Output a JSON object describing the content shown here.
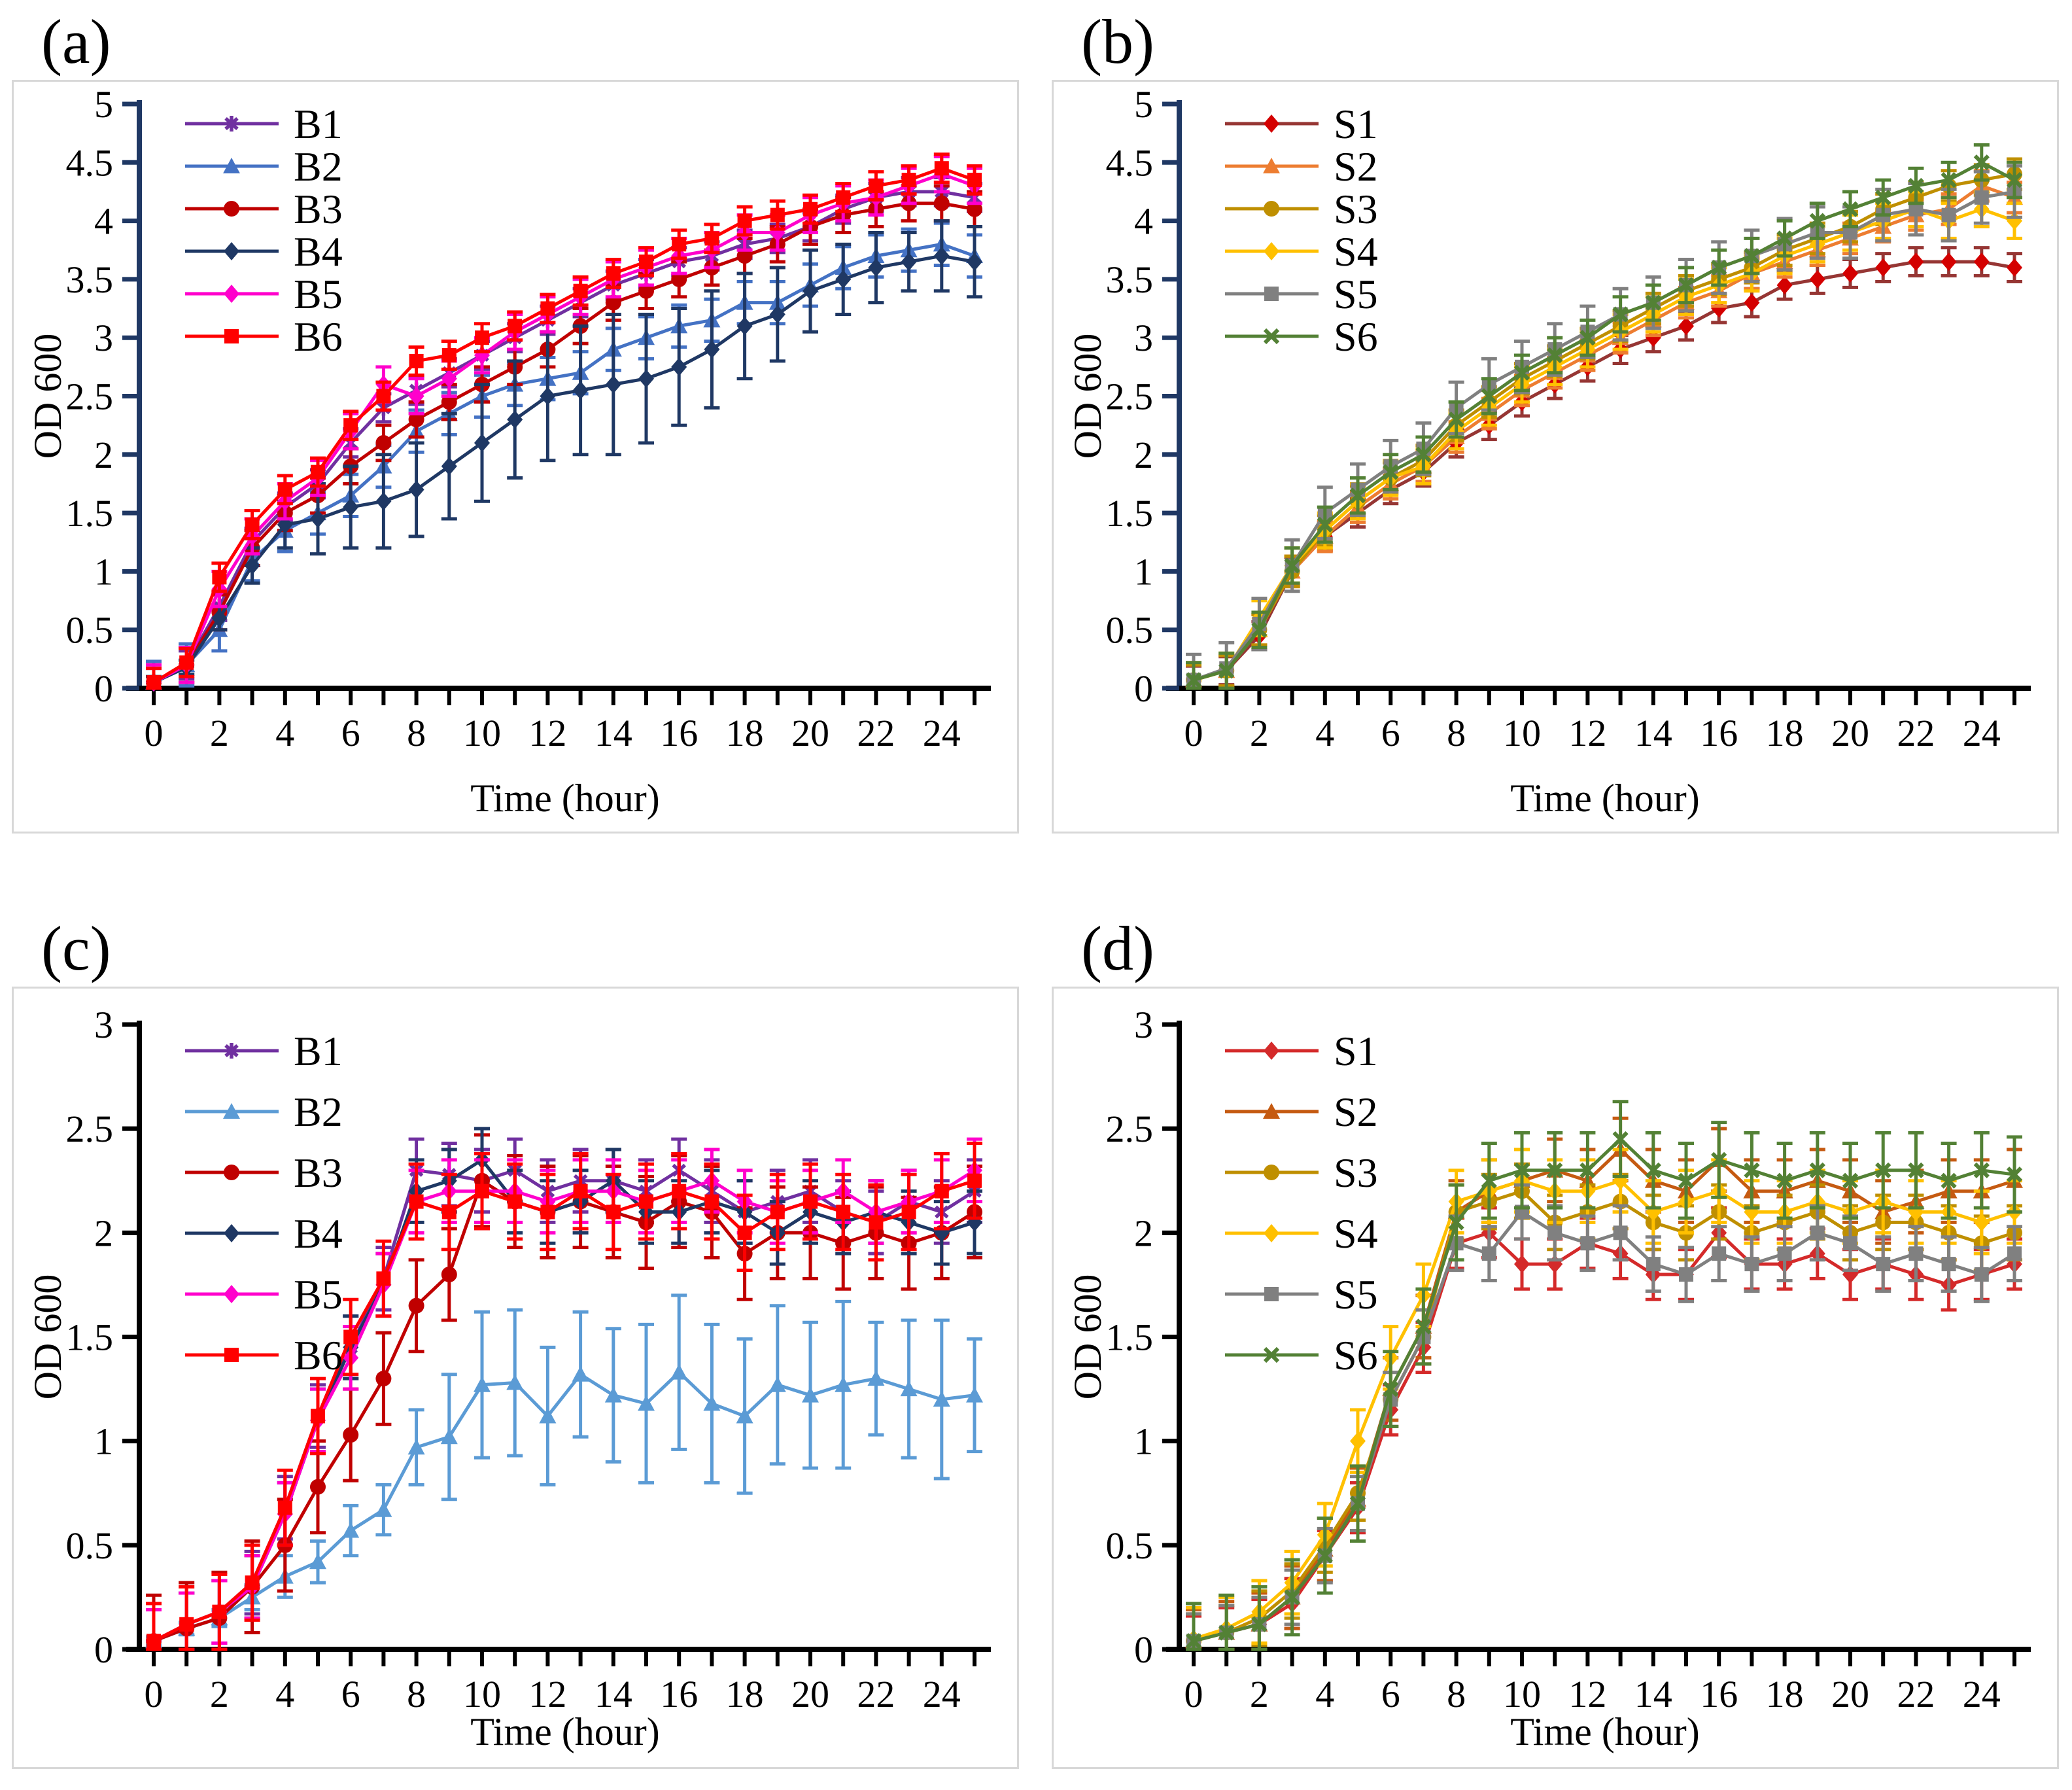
{
  "figure": {
    "x_axis_label": "Time (hour)",
    "y_axis_label": "OD 600",
    "hours": [
      0,
      1,
      2,
      3,
      4,
      5,
      6,
      7,
      8,
      9,
      10,
      11,
      12,
      13,
      14,
      15,
      16,
      17,
      18,
      19,
      20,
      21,
      22,
      23,
      24,
      25
    ]
  },
  "chart_data": [
    {
      "type": "line",
      "panel_label": "(a)",
      "xlabel": "Time (hour)",
      "ylabel": "OD 600",
      "xlim": [
        0,
        25
      ],
      "xtick_label_step": 2,
      "ylim": [
        0,
        5
      ],
      "ytick_step": 0.5,
      "axis_color": "#1F3864",
      "grid": false,
      "legend_position": "top-left",
      "x": [
        0,
        1,
        2,
        3,
        4,
        5,
        6,
        7,
        8,
        9,
        10,
        11,
        12,
        13,
        14,
        15,
        16,
        17,
        18,
        19,
        20,
        21,
        22,
        23,
        24,
        25
      ],
      "series": [
        {
          "name": "B1",
          "color": "#7030A0",
          "marker": "star",
          "err": 0.12,
          "values": [
            0.05,
            0.2,
            0.7,
            1.25,
            1.55,
            1.75,
            2.1,
            2.4,
            2.55,
            2.7,
            2.85,
            3.0,
            3.15,
            3.3,
            3.45,
            3.55,
            3.65,
            3.7,
            3.8,
            3.85,
            3.95,
            4.1,
            4.2,
            4.25,
            4.25,
            4.2
          ]
        },
        {
          "name": "B2",
          "color": "#4472C4",
          "marker": "triangle",
          "err": 0.18,
          "values": [
            0.05,
            0.2,
            0.5,
            1.1,
            1.35,
            1.5,
            1.65,
            1.9,
            2.2,
            2.35,
            2.5,
            2.6,
            2.65,
            2.7,
            2.9,
            3.0,
            3.1,
            3.15,
            3.3,
            3.3,
            3.45,
            3.6,
            3.7,
            3.75,
            3.8,
            3.7
          ]
        },
        {
          "name": "B3",
          "color": "#C00000",
          "marker": "circle",
          "err": 0.15,
          "values": [
            0.05,
            0.2,
            0.65,
            1.2,
            1.5,
            1.65,
            1.9,
            2.1,
            2.3,
            2.45,
            2.6,
            2.75,
            2.9,
            3.1,
            3.3,
            3.4,
            3.5,
            3.6,
            3.7,
            3.8,
            3.95,
            4.05,
            4.1,
            4.15,
            4.15,
            4.1
          ]
        },
        {
          "name": "B4",
          "color": "#1F3864",
          "marker": "diamond",
          "err": [
            0.05,
            0.06,
            0.1,
            0.15,
            0.2,
            0.3,
            0.35,
            0.4,
            0.4,
            0.45,
            0.5,
            0.5,
            0.55,
            0.55,
            0.6,
            0.55,
            0.5,
            0.5,
            0.45,
            0.4,
            0.35,
            0.3,
            0.3,
            0.25,
            0.3,
            0.3
          ],
          "values": [
            0.05,
            0.18,
            0.6,
            1.05,
            1.4,
            1.45,
            1.55,
            1.6,
            1.7,
            1.9,
            2.1,
            2.3,
            2.5,
            2.55,
            2.6,
            2.65,
            2.75,
            2.9,
            3.1,
            3.2,
            3.4,
            3.5,
            3.6,
            3.65,
            3.7,
            3.65
          ]
        },
        {
          "name": "B5",
          "color": "#FF00CC",
          "marker": "diamond",
          "err": 0.15,
          "values": [
            0.05,
            0.2,
            0.85,
            1.3,
            1.6,
            1.8,
            2.2,
            2.6,
            2.5,
            2.65,
            2.85,
            3.05,
            3.2,
            3.35,
            3.5,
            3.6,
            3.7,
            3.75,
            3.9,
            3.9,
            4.05,
            4.15,
            4.2,
            4.3,
            4.4,
            4.3
          ]
        },
        {
          "name": "B6",
          "color": "#FF0000",
          "marker": "square",
          "err": 0.12,
          "values": [
            0.05,
            0.22,
            0.95,
            1.4,
            1.7,
            1.85,
            2.25,
            2.5,
            2.8,
            2.85,
            3.0,
            3.1,
            3.25,
            3.4,
            3.55,
            3.65,
            3.8,
            3.85,
            4.0,
            4.05,
            4.1,
            4.2,
            4.3,
            4.35,
            4.45,
            4.35
          ]
        }
      ]
    },
    {
      "type": "line",
      "panel_label": "(b)",
      "xlabel": "Time (hour)",
      "ylabel": "OD 600",
      "xlim": [
        0,
        25
      ],
      "xtick_label_step": 2,
      "ylim": [
        0,
        5
      ],
      "ytick_step": 0.5,
      "axis_color": "#1F3864",
      "grid": false,
      "legend_position": "top-left",
      "x": [
        0,
        1,
        2,
        3,
        4,
        5,
        6,
        7,
        8,
        9,
        10,
        11,
        12,
        13,
        14,
        15,
        16,
        17,
        18,
        19,
        20,
        21,
        22,
        23,
        24,
        25
      ],
      "series": [
        {
          "name": "S1",
          "color": "#963634",
          "marker": "diamond",
          "marker_color": "#D40000",
          "err": 0.12,
          "values": [
            0.07,
            0.15,
            0.45,
            1.0,
            1.3,
            1.5,
            1.7,
            1.85,
            2.1,
            2.25,
            2.45,
            2.6,
            2.75,
            2.9,
            3.0,
            3.1,
            3.25,
            3.3,
            3.45,
            3.5,
            3.55,
            3.6,
            3.65,
            3.65,
            3.65,
            3.6
          ]
        },
        {
          "name": "S2",
          "color": "#ED7D31",
          "marker": "triangle",
          "err": 0.13,
          "values": [
            0.07,
            0.15,
            0.5,
            1.0,
            1.3,
            1.55,
            1.75,
            1.9,
            2.15,
            2.35,
            2.55,
            2.7,
            2.85,
            3.0,
            3.15,
            3.3,
            3.4,
            3.55,
            3.65,
            3.75,
            3.85,
            3.95,
            4.05,
            4.1,
            4.3,
            4.2
          ]
        },
        {
          "name": "S3",
          "color": "#BF8F00",
          "marker": "circle",
          "err": 0.13,
          "values": [
            0.07,
            0.15,
            0.5,
            1.0,
            1.35,
            1.6,
            1.8,
            1.95,
            2.25,
            2.45,
            2.65,
            2.8,
            2.95,
            3.1,
            3.25,
            3.4,
            3.5,
            3.6,
            3.75,
            3.85,
            3.95,
            4.1,
            4.2,
            4.3,
            4.35,
            4.4
          ]
        },
        {
          "name": "S4",
          "color": "#FFC000",
          "marker": "diamond",
          "err": 0.15,
          "values": [
            0.07,
            0.15,
            0.6,
            1.05,
            1.35,
            1.6,
            1.8,
            1.9,
            2.2,
            2.4,
            2.6,
            2.75,
            2.9,
            3.05,
            3.2,
            3.35,
            3.45,
            3.55,
            3.7,
            3.8,
            3.9,
            4.0,
            4.1,
            4.0,
            4.1,
            4.0
          ]
        },
        {
          "name": "S5",
          "color": "#808080",
          "marker": "square",
          "err": 0.22,
          "values": [
            0.07,
            0.17,
            0.55,
            1.05,
            1.5,
            1.7,
            1.9,
            2.05,
            2.4,
            2.6,
            2.75,
            2.9,
            3.05,
            3.2,
            3.3,
            3.45,
            3.6,
            3.7,
            3.8,
            3.9,
            3.9,
            4.05,
            4.1,
            4.05,
            4.2,
            4.25
          ]
        },
        {
          "name": "S6",
          "color": "#538135",
          "marker": "x",
          "err": 0.15,
          "values": [
            0.07,
            0.15,
            0.5,
            1.05,
            1.4,
            1.65,
            1.85,
            2.0,
            2.3,
            2.5,
            2.7,
            2.85,
            3.0,
            3.2,
            3.3,
            3.45,
            3.6,
            3.7,
            3.85,
            4.0,
            4.1,
            4.2,
            4.3,
            4.35,
            4.5,
            4.35
          ]
        }
      ]
    },
    {
      "type": "line",
      "panel_label": "(c)",
      "xlabel": "Time (hour)",
      "ylabel": "OD 600",
      "xlim": [
        0,
        25
      ],
      "xtick_label_step": 2,
      "ylim": [
        0,
        3
      ],
      "ytick_step": 0.5,
      "axis_color": "#000000",
      "grid": false,
      "legend_position": "top-left",
      "x": [
        0,
        1,
        2,
        3,
        4,
        5,
        6,
        7,
        8,
        9,
        10,
        11,
        12,
        13,
        14,
        15,
        16,
        17,
        18,
        19,
        20,
        21,
        22,
        23,
        24,
        25
      ],
      "series": [
        {
          "name": "B1",
          "color": "#7030A0",
          "marker": "star",
          "err": 0.15,
          "values": [
            0.04,
            0.12,
            0.18,
            0.32,
            0.68,
            1.12,
            1.45,
            1.78,
            2.3,
            2.28,
            2.25,
            2.3,
            2.2,
            2.25,
            2.25,
            2.2,
            2.3,
            2.2,
            2.1,
            2.15,
            2.2,
            2.1,
            2.05,
            2.15,
            2.1,
            2.2
          ]
        },
        {
          "name": "B2",
          "color": "#5B9BD5",
          "marker": "triangle",
          "err": [
            0.02,
            0.03,
            0.04,
            0.06,
            0.1,
            0.1,
            0.12,
            0.12,
            0.18,
            0.3,
            0.35,
            0.35,
            0.33,
            0.3,
            0.32,
            0.38,
            0.37,
            0.38,
            0.37,
            0.38,
            0.35,
            0.4,
            0.27,
            0.33,
            0.38,
            0.27
          ],
          "values": [
            0.04,
            0.1,
            0.15,
            0.25,
            0.35,
            0.42,
            0.57,
            0.67,
            0.97,
            1.02,
            1.27,
            1.28,
            1.12,
            1.32,
            1.22,
            1.18,
            1.33,
            1.18,
            1.12,
            1.27,
            1.22,
            1.27,
            1.3,
            1.25,
            1.2,
            1.22
          ]
        },
        {
          "name": "B3",
          "color": "#C00000",
          "marker": "circle",
          "err": 0.22,
          "values": [
            0.04,
            0.1,
            0.15,
            0.3,
            0.5,
            0.78,
            1.03,
            1.3,
            1.65,
            1.8,
            2.25,
            2.15,
            2.1,
            2.15,
            2.1,
            2.05,
            2.15,
            2.1,
            1.9,
            2.0,
            2.0,
            1.95,
            2.0,
            1.95,
            2.0,
            2.1
          ]
        },
        {
          "name": "B4",
          "color": "#1F3864",
          "marker": "diamond",
          "err": 0.15,
          "values": [
            0.04,
            0.12,
            0.18,
            0.3,
            0.65,
            1.1,
            1.45,
            1.75,
            2.2,
            2.25,
            2.35,
            2.15,
            2.1,
            2.15,
            2.25,
            2.1,
            2.1,
            2.15,
            2.1,
            2.0,
            2.1,
            2.05,
            2.1,
            2.05,
            2.0,
            2.05
          ]
        },
        {
          "name": "B5",
          "color": "#FF00CC",
          "marker": "diamond",
          "err": 0.15,
          "values": [
            0.04,
            0.12,
            0.18,
            0.3,
            0.65,
            1.1,
            1.4,
            1.75,
            2.15,
            2.2,
            2.2,
            2.2,
            2.15,
            2.2,
            2.2,
            2.15,
            2.2,
            2.25,
            2.15,
            2.1,
            2.15,
            2.2,
            2.1,
            2.15,
            2.2,
            2.3
          ]
        },
        {
          "name": "B6",
          "color": "#FF0000",
          "marker": "square",
          "err": 0.18,
          "values": [
            0.04,
            0.12,
            0.18,
            0.32,
            0.68,
            1.12,
            1.5,
            1.78,
            2.15,
            2.1,
            2.2,
            2.15,
            2.1,
            2.2,
            2.1,
            2.15,
            2.2,
            2.15,
            2.0,
            2.1,
            2.15,
            2.1,
            2.05,
            2.1,
            2.2,
            2.25
          ]
        }
      ]
    },
    {
      "type": "line",
      "panel_label": "(d)",
      "xlabel": "Time (hour)",
      "ylabel": "OD 600",
      "xlim": [
        0,
        25
      ],
      "xtick_label_step": 2,
      "ylim": [
        0,
        3
      ],
      "ytick_step": 0.5,
      "axis_color": "#000000",
      "grid": false,
      "legend_position": "top-left",
      "x": [
        0,
        1,
        2,
        3,
        4,
        5,
        6,
        7,
        8,
        9,
        10,
        11,
        12,
        13,
        14,
        15,
        16,
        17,
        18,
        19,
        20,
        21,
        22,
        23,
        24,
        25
      ],
      "series": [
        {
          "name": "S1",
          "color": "#D42A2A",
          "marker": "diamond",
          "err": 0.12,
          "values": [
            0.04,
            0.08,
            0.12,
            0.22,
            0.45,
            0.68,
            1.15,
            1.45,
            1.95,
            2.0,
            1.85,
            1.85,
            1.95,
            1.9,
            1.8,
            1.8,
            2.0,
            1.85,
            1.85,
            1.9,
            1.8,
            1.85,
            1.8,
            1.75,
            1.8,
            1.85
          ]
        },
        {
          "name": "S2",
          "color": "#C55A11",
          "marker": "triangle",
          "err": 0.15,
          "values": [
            0.04,
            0.08,
            0.12,
            0.25,
            0.48,
            0.72,
            1.25,
            1.55,
            2.1,
            2.2,
            2.25,
            2.3,
            2.25,
            2.4,
            2.25,
            2.2,
            2.35,
            2.2,
            2.2,
            2.25,
            2.2,
            2.1,
            2.15,
            2.2,
            2.2,
            2.25
          ]
        },
        {
          "name": "S3",
          "color": "#BF8F00",
          "marker": "circle",
          "err": 0.13,
          "values": [
            0.04,
            0.08,
            0.15,
            0.28,
            0.5,
            0.75,
            1.2,
            1.5,
            2.1,
            2.15,
            2.2,
            2.05,
            2.1,
            2.15,
            2.05,
            2.0,
            2.1,
            2.0,
            2.05,
            2.1,
            2.0,
            2.05,
            2.05,
            2.0,
            1.95,
            2.0
          ]
        },
        {
          "name": "S4",
          "color": "#FFC000",
          "marker": "diamond",
          "err": 0.15,
          "values": [
            0.05,
            0.1,
            0.18,
            0.32,
            0.55,
            1.0,
            1.4,
            1.7,
            2.15,
            2.2,
            2.25,
            2.2,
            2.2,
            2.25,
            2.1,
            2.15,
            2.2,
            2.1,
            2.1,
            2.15,
            2.1,
            2.15,
            2.1,
            2.1,
            2.05,
            2.1
          ]
        },
        {
          "name": "S5",
          "color": "#808080",
          "marker": "square",
          "err": 0.13,
          "values": [
            0.04,
            0.08,
            0.12,
            0.25,
            0.45,
            0.7,
            1.2,
            1.5,
            1.95,
            1.9,
            2.1,
            2.0,
            1.95,
            2.0,
            1.85,
            1.8,
            1.9,
            1.85,
            1.9,
            2.0,
            1.95,
            1.85,
            1.9,
            1.85,
            1.8,
            1.9
          ]
        },
        {
          "name": "S6",
          "color": "#538135",
          "marker": "x",
          "err": 0.18,
          "values": [
            0.04,
            0.08,
            0.12,
            0.25,
            0.45,
            0.7,
            1.25,
            1.55,
            2.05,
            2.25,
            2.3,
            2.3,
            2.3,
            2.45,
            2.3,
            2.25,
            2.35,
            2.3,
            2.25,
            2.3,
            2.25,
            2.3,
            2.3,
            2.25,
            2.3,
            2.28
          ]
        }
      ]
    }
  ]
}
